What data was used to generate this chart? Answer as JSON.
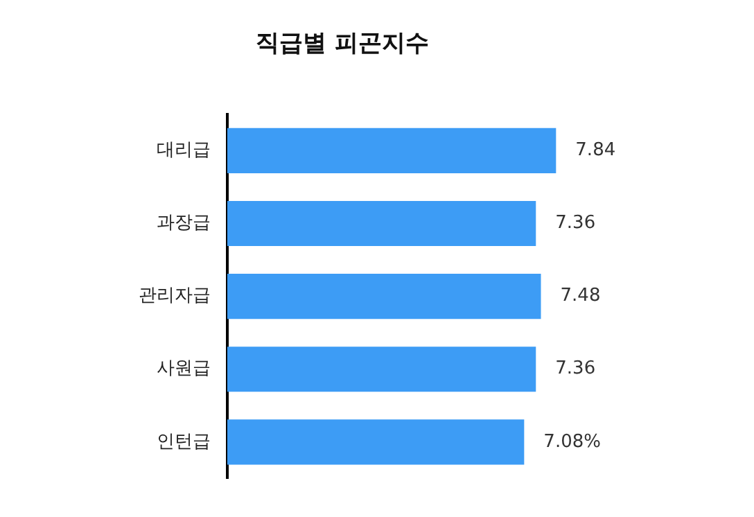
{
  "chart_data": {
    "type": "bar",
    "orientation": "horizontal",
    "title": "직급별 피곤지수",
    "categories": [
      "대리급",
      "과장급",
      "관리자급",
      "사원급",
      "인턴급"
    ],
    "values": [
      7.84,
      7.36,
      7.48,
      7.36,
      7.08
    ],
    "value_labels": [
      "7.84",
      "7.36",
      "7.48",
      "7.36",
      "7.08%"
    ],
    "color": "#3d9cf5"
  }
}
